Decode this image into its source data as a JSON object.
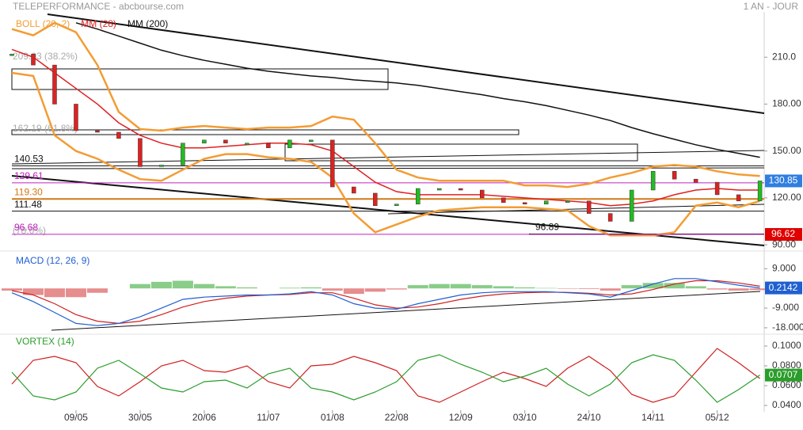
{
  "chart_data": [
    {
      "type": "price",
      "title": "TELEPERFORMANCE - abcbourse.com",
      "subtitle": "1 AN - JOUR",
      "x": [
        0,
        5,
        10,
        15,
        20,
        25,
        30,
        35,
        40,
        45,
        50,
        55,
        60,
        65,
        70,
        75,
        80,
        85,
        90,
        95,
        100,
        105,
        110,
        115,
        120,
        125,
        130,
        135,
        140,
        145,
        150,
        155,
        160,
        165,
        170,
        175
      ],
      "xlim": [
        0,
        176
      ],
      "xticks": [
        {
          "value": 15,
          "label": "09/05"
        },
        {
          "value": 30,
          "label": "30/05"
        },
        {
          "value": 45,
          "label": "20/06"
        },
        {
          "value": 60,
          "label": "11/07"
        },
        {
          "value": 75,
          "label": "01/08"
        },
        {
          "value": 90,
          "label": "22/08"
        },
        {
          "value": 105,
          "label": "12/09"
        },
        {
          "value": 120,
          "label": "03/10"
        },
        {
          "value": 135,
          "label": "24/10"
        },
        {
          "value": 150,
          "label": "14/11"
        },
        {
          "value": 165,
          "label": "05/12"
        }
      ],
      "ylim": [
        87,
        239
      ],
      "yticks": [
        {
          "value": 210,
          "label": "210.0"
        },
        {
          "value": 180,
          "label": "180.00"
        },
        {
          "value": 150,
          "label": "150.00"
        },
        {
          "value": 120,
          "label": "120.00"
        },
        {
          "value": 90,
          "label": "90.00"
        }
      ],
      "close": {
        "up_color": "#22bb22",
        "down_color": "#dd2222",
        "values": [
          212,
          205,
          180,
          163,
          162,
          158,
          140,
          141,
          155,
          157,
          155,
          155,
          152,
          157,
          157,
          127,
          123,
          115,
          116,
          126,
          126,
          125,
          120,
          117,
          116,
          118,
          118,
          110,
          105,
          125,
          137,
          132,
          130,
          122,
          118,
          130.85
        ]
      },
      "series": [
        {
          "name": "BOLL (20, 2)",
          "color": "#f39c33",
          "values": [
            228,
            224,
            232,
            226,
            205,
            175,
            164,
            163,
            165,
            166,
            165,
            164,
            165,
            165,
            166,
            172,
            170,
            155,
            138,
            133,
            131,
            131,
            131,
            131,
            128,
            128,
            127,
            129,
            133,
            136,
            140,
            141,
            140,
            137,
            135,
            134
          ],
          "lower": [
            200,
            198,
            160,
            150,
            145,
            138,
            132,
            131,
            138,
            145,
            148,
            148,
            146,
            145,
            143,
            133,
            110,
            98,
            103,
            108,
            112,
            113,
            114,
            114,
            114,
            113,
            112,
            102,
            96,
            96,
            96,
            98,
            115,
            117,
            114,
            118
          ]
        },
        {
          "name": "MM (28)",
          "color": "#e02020",
          "values": [
            215,
            210,
            200,
            190,
            180,
            168,
            160,
            155,
            152,
            152,
            153,
            154,
            155,
            155,
            154,
            150,
            140,
            130,
            124,
            122,
            122,
            122,
            122,
            121,
            120,
            119,
            118,
            117,
            115,
            116,
            118,
            122,
            125,
            126,
            125,
            125
          ]
        },
        {
          "name": "MM (200)",
          "color": "#111111",
          "values": [
            null,
            null,
            null,
            232,
            228,
            223.5,
            219,
            214.5,
            211,
            208,
            205.5,
            203,
            201,
            199.5,
            198,
            197,
            195.5,
            194.5,
            193.5,
            192,
            190,
            188,
            186,
            183.5,
            181.5,
            179,
            176,
            173,
            169.5,
            165,
            161,
            157.5,
            154,
            151,
            148.5,
            146
          ]
        }
      ],
      "levels": [
        {
          "value": 140.53,
          "color": "#111111"
        },
        {
          "value": 129.61,
          "color": "#c020c0"
        },
        {
          "value": 119.3,
          "label": "119.30",
          "color": "#d07818"
        },
        {
          "value": 111.48,
          "color": "#111111"
        },
        {
          "value": 96.68,
          "color": "#c020c0"
        }
      ],
      "low_marker": 96.89,
      "fib_labels": [
        "209.03 (38.2%)",
        "162.19 (61.8%)",
        "(78.6%)"
      ],
      "right_tags": [
        {
          "value": 96.62,
          "color": "#e00000"
        }
      ],
      "close_tag_color": "#2f7ee0"
    },
    {
      "type": "macd",
      "title": "MACD (12, 26, 9)",
      "title_color": "#1f5fd0",
      "ylim": [
        -20.2,
        16
      ],
      "yticks": [
        {
          "value": 9,
          "label": "9.000"
        },
        {
          "value": -9,
          "label": "-9.000"
        },
        {
          "value": -18,
          "label": "-18.000"
        }
      ],
      "macd": {
        "color": "#1f5fd0",
        "values": [
          -2,
          -6,
          -11,
          -16,
          -17,
          -16,
          -13,
          -9,
          -5,
          -4,
          -3.5,
          -3,
          -3,
          -2.5,
          -1.5,
          -3,
          -7,
          -9,
          -9.5,
          -7,
          -5,
          -3,
          -2,
          -1.5,
          -1.5,
          -1.5,
          -2,
          -2.5,
          -4,
          -1,
          2,
          4.5,
          4.5,
          3,
          1.5,
          0.2142
        ]
      },
      "signal": {
        "color": "#d02020",
        "values": [
          -1,
          -3,
          -7,
          -12,
          -15,
          -16,
          -15,
          -12,
          -8.5,
          -6,
          -4.5,
          -3.5,
          -3,
          -2.8,
          -2,
          -2,
          -4.5,
          -7.5,
          -9,
          -8.5,
          -7,
          -5,
          -3.5,
          -2.5,
          -2,
          -1.7,
          -1.8,
          -2.2,
          -3,
          -2.5,
          -0.5,
          2,
          3.5,
          3.5,
          2.5,
          1
        ]
      },
      "histogram": {
        "up_color": "#6cc06c",
        "down_color": "#e07070",
        "values": [
          -1,
          -3,
          -4,
          -4,
          -2,
          0,
          2,
          3,
          3.5,
          2,
          1,
          0.5,
          0,
          0.3,
          0.5,
          -1,
          -2.5,
          -1.5,
          -0.5,
          1.5,
          2,
          2,
          1.5,
          1,
          0.5,
          0.2,
          -0.2,
          -0.3,
          -1,
          1.5,
          2.5,
          2.5,
          1,
          -0.5,
          -1,
          -0.79
        ]
      }
    },
    {
      "type": "vortex",
      "title": "VORTEX (14)",
      "title_color": "#2a9d2a",
      "ylim": [
        0.0352,
        0.1096
      ],
      "yticks": [
        {
          "value": 0.1,
          "label": "0.1000"
        },
        {
          "value": 0.08,
          "label": "0.0800"
        },
        {
          "value": 0.06,
          "label": "0.0600"
        },
        {
          "value": 0.04,
          "label": "0.0400"
        }
      ],
      "plus": {
        "color": "#2a9d2a",
        "values": [
          0.0736,
          0.0496,
          0.0456,
          0.0536,
          0.0776,
          0.0856,
          0.072,
          0.0576,
          0.0536,
          0.064,
          0.0656,
          0.0576,
          0.072,
          0.0776,
          0.0576,
          0.0536,
          0.0456,
          0.0536,
          0.064,
          0.0856,
          0.0912,
          0.0816,
          0.0736,
          0.064,
          0.0696,
          0.0776,
          0.0616,
          0.0496,
          0.0616,
          0.0832,
          0.0912,
          0.0856,
          0.0656,
          0.0432,
          0.056,
          0.0707
        ]
      },
      "minus": {
        "color": "#d02020",
        "values": [
          0.0616,
          0.0856,
          0.0896,
          0.0832,
          0.0592,
          0.0496,
          0.064,
          0.08,
          0.0856,
          0.0752,
          0.0736,
          0.08,
          0.064,
          0.0576,
          0.08,
          0.0816,
          0.0896,
          0.0832,
          0.0752,
          0.0496,
          0.0432,
          0.0536,
          0.064,
          0.0736,
          0.0672,
          0.0592,
          0.0776,
          0.0896,
          0.0752,
          0.0512,
          0.0432,
          0.0496,
          0.0736,
          0.0976,
          0.0832,
          0.0672
        ]
      }
    }
  ]
}
